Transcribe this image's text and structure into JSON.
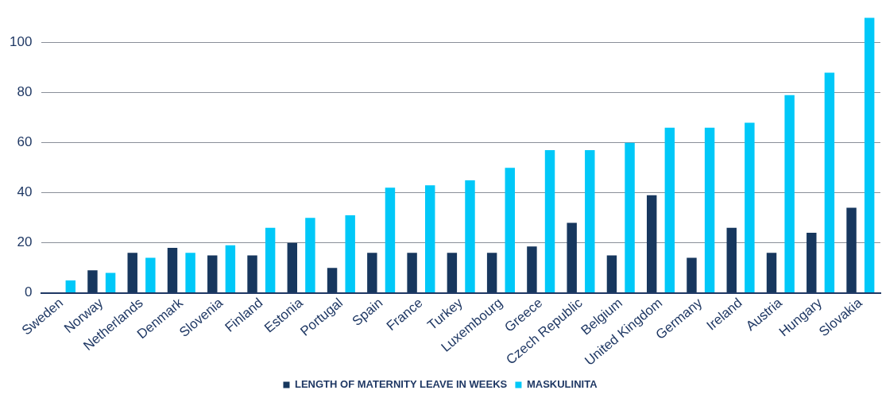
{
  "chart_data": {
    "type": "bar",
    "categories": [
      "Sweden",
      "Norway",
      "Netherlands",
      "Denmark",
      "Slovenia",
      "Finland",
      "Estonia",
      "Portugal",
      "Spain",
      "France",
      "Turkey",
      "Luxembourg",
      "Greece",
      "Czech Republic",
      "Belgium",
      "United Kingdom",
      "Germany",
      "Ireland",
      "Austria",
      "Hungary",
      "Slovakia"
    ],
    "series": [
      {
        "name": "LENGTH OF MATERNITY LEAVE IN WEEKS",
        "color": "#17375e",
        "values": [
          null,
          9,
          16,
          18,
          15,
          15,
          20,
          10,
          16,
          16,
          16,
          16,
          18.5,
          28,
          15,
          39,
          14,
          26,
          16,
          24,
          34
        ]
      },
      {
        "name": "MASKULINITA",
        "color": "#00c8f8",
        "values": [
          5,
          8,
          14,
          16,
          19,
          26,
          30,
          31,
          42,
          43,
          45,
          50,
          57,
          57,
          60,
          66,
          66,
          68,
          79,
          88,
          110
        ]
      }
    ],
    "ylim": [
      0,
      110
    ],
    "yticks": [
      0,
      20,
      40,
      60,
      80,
      100
    ],
    "grid": "y",
    "legend": "bottom"
  }
}
